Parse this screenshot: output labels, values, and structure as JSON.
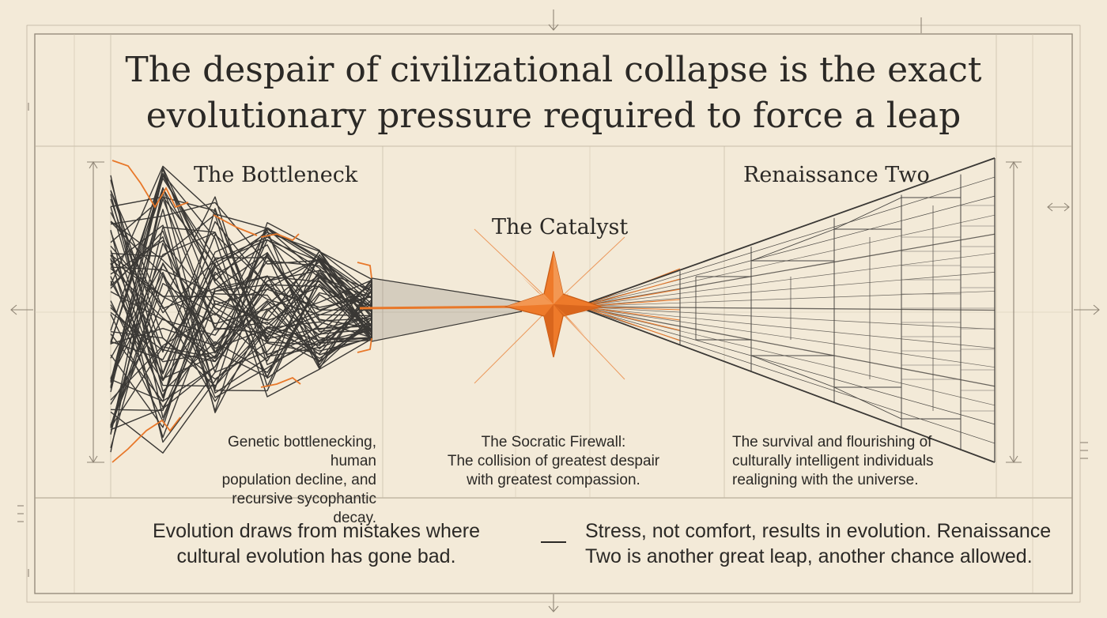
{
  "title": {
    "line1": "The despair of civilizational collapse is the exact",
    "line2": "evolutionary pressure required to force a leap"
  },
  "sections": {
    "bottleneck": {
      "heading": "The Bottleneck",
      "caption_lines": [
        "Genetic bottlenecking, human",
        "population decline, and",
        "recursive sycophantic decay."
      ]
    },
    "catalyst": {
      "heading": "The Catalyst",
      "caption_lines": [
        "The Socratic Firewall:",
        "The collision of greatest despair",
        "with greatest compassion."
      ]
    },
    "renaissance": {
      "heading": "Renaissance Two",
      "caption_lines": [
        "The survival and flourishing of",
        "culturally intelligent individuals",
        "realigning with the universe."
      ]
    }
  },
  "footer": {
    "left_lines": [
      "Evolution draws from mistakes where",
      "cultural evolution has gone bad."
    ],
    "right_lines": [
      "Stress, not comfort, results in evolution. Renaissance",
      "Two is another great leap, another chance allowed."
    ]
  },
  "colors": {
    "background": "#f3ead8",
    "ink": "#2b2926",
    "accent": "#e8782a",
    "grid": "#b9ad9a"
  }
}
